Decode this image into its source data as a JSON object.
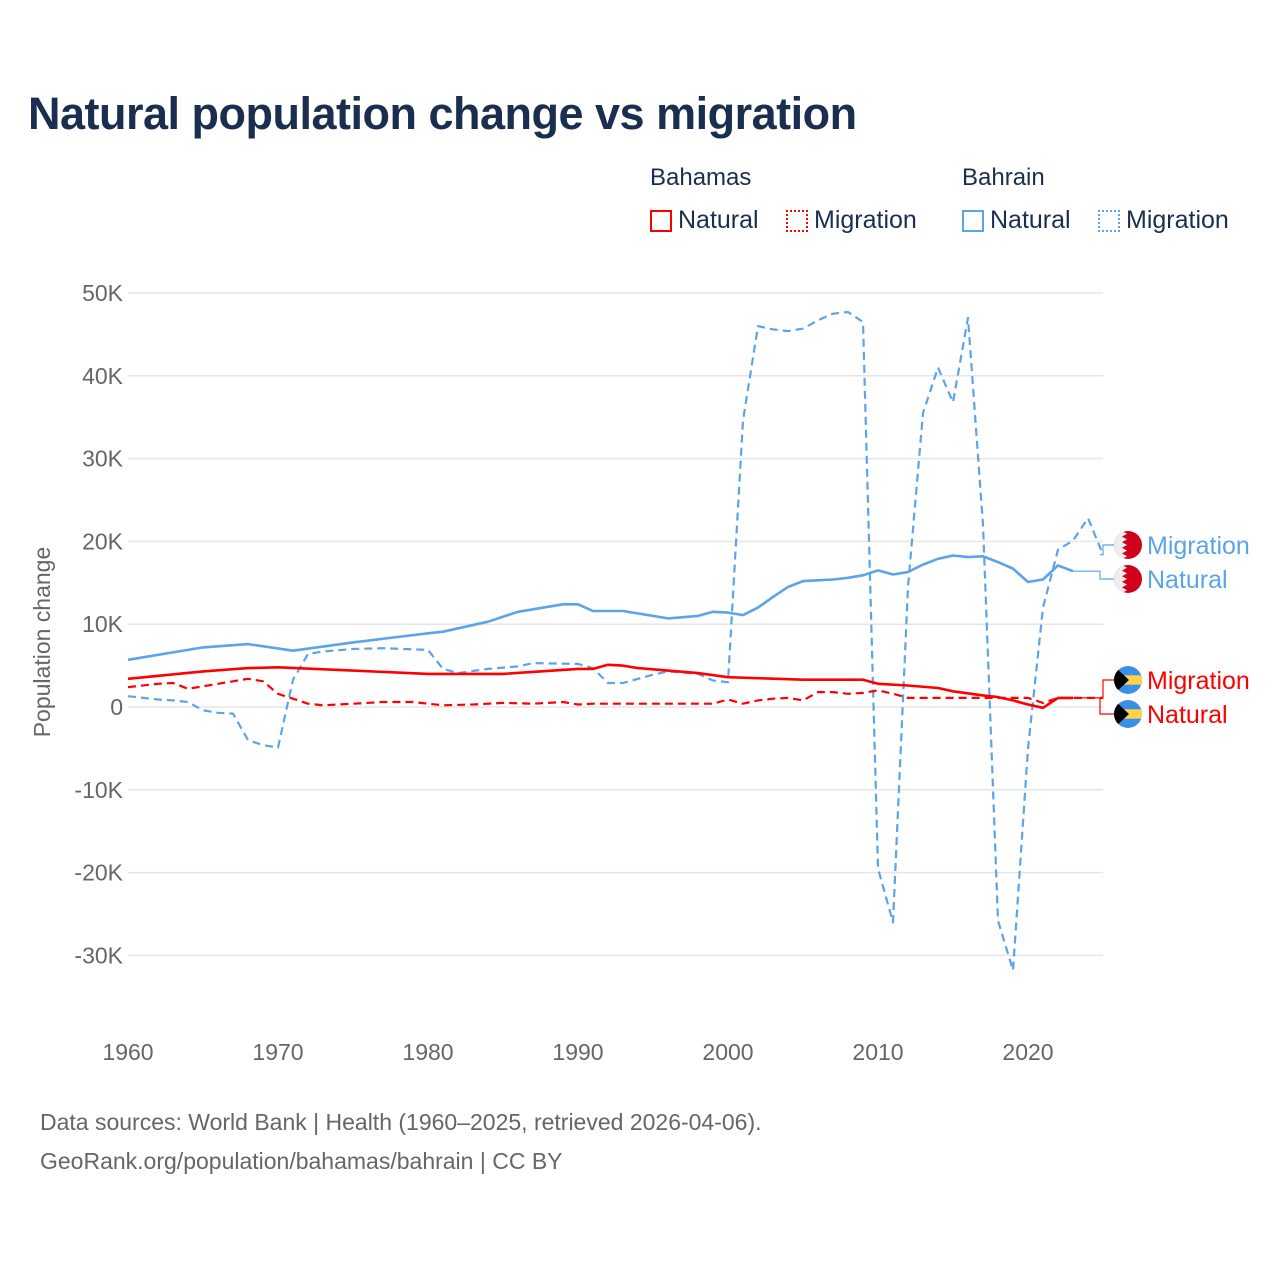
{
  "chart_data": {
    "type": "line",
    "title": "Natural population change vs migration",
    "xlabel": "",
    "ylabel": "Population change",
    "xlim": [
      1960,
      2025
    ],
    "ylim": [
      -35000,
      52000
    ],
    "x_ticks": [
      "1960",
      "1970",
      "1980",
      "1990",
      "2000",
      "2010",
      "2020"
    ],
    "y_ticks": [
      {
        "v": 50000,
        "label": "50K"
      },
      {
        "v": 40000,
        "label": "40K"
      },
      {
        "v": 30000,
        "label": "30K"
      },
      {
        "v": 20000,
        "label": "20K"
      },
      {
        "v": 10000,
        "label": "10K"
      },
      {
        "v": 0,
        "label": "0"
      },
      {
        "v": -10000,
        "label": "-10K"
      },
      {
        "v": -20000,
        "label": "-20K"
      },
      {
        "v": -30000,
        "label": "-30K"
      }
    ],
    "grid": true,
    "legend_placement": "top-right",
    "legend_groups": [
      {
        "name": "Bahamas",
        "items": [
          {
            "label": "Natural",
            "style": "solid"
          },
          {
            "label": "Migration",
            "style": "dotted"
          }
        ]
      },
      {
        "name": "Bahrain",
        "items": [
          {
            "label": "Natural",
            "style": "solid"
          },
          {
            "label": "Migration",
            "style": "dotted"
          }
        ]
      }
    ],
    "series": [
      {
        "name": "Bahrain Migration",
        "country": "Bahrain",
        "label": "Migration",
        "color": "#5ba4ea",
        "dash": true,
        "x": [
          1960,
          1962,
          1963,
          1964,
          1965,
          1966,
          1967,
          1968,
          1969,
          1970,
          1971,
          1972,
          1973,
          1975,
          1977,
          1980,
          1981,
          1982,
          1984,
          1986,
          1987,
          1990,
          1991,
          1992,
          1993,
          1995,
          1996,
          1998,
          1999,
          2000,
          2001,
          2002,
          2003,
          2004,
          2005,
          2006,
          2007,
          2008,
          2009,
          2010,
          2011,
          2012,
          2013,
          2014,
          2015,
          2016,
          2017,
          2018,
          2019,
          2020,
          2021,
          2022,
          2023,
          2024,
          2025
        ],
        "y": [
          1300,
          900,
          800,
          600,
          -400,
          -700,
          -800,
          -4000,
          -4600,
          -4900,
          3300,
          6400,
          6700,
          7000,
          7100,
          6900,
          4600,
          4100,
          4600,
          4900,
          5300,
          5200,
          4700,
          2900,
          2900,
          3900,
          4300,
          4000,
          3200,
          3000,
          34600,
          46000,
          45600,
          45400,
          45700,
          46700,
          47500,
          47700,
          46500,
          -19500,
          -26000,
          14500,
          35500,
          41000,
          36800,
          47000,
          22000,
          -25800,
          -31800,
          -5000,
          12000,
          19000,
          20100,
          22800,
          18400
        ]
      },
      {
        "name": "Bahrain Natural",
        "country": "Bahrain",
        "label": "Natural",
        "color": "#5ba4ea",
        "dash": false,
        "x": [
          1960,
          1965,
          1968,
          1971,
          1975,
          1980,
          1981,
          1984,
          1986,
          1989,
          1990,
          1991,
          1993,
          1996,
          1998,
          1999,
          2000,
          2001,
          2002,
          2003,
          2004,
          2005,
          2006,
          2007,
          2008,
          2009,
          2010,
          2011,
          2012,
          2013,
          2014,
          2015,
          2016,
          2017,
          2018,
          2019,
          2020,
          2021,
          2022,
          2023
        ],
        "y": [
          5700,
          7200,
          7600,
          6800,
          7800,
          8900,
          9100,
          10300,
          11500,
          12400,
          12400,
          11600,
          11600,
          10700,
          11000,
          11500,
          11400,
          11100,
          12000,
          13300,
          14500,
          15200,
          15300,
          15400,
          15600,
          15900,
          16500,
          16000,
          16300,
          17200,
          17900,
          18300,
          18100,
          18200,
          17500,
          16700,
          15100,
          15400,
          17100,
          16400
        ]
      },
      {
        "name": "Bahamas Migration",
        "country": "Bahamas",
        "label": "Migration",
        "color": "#ff0000",
        "dash": true,
        "x": [
          1960,
          1962,
          1963,
          1964,
          1966,
          1968,
          1969,
          1970,
          1971,
          1972,
          1973,
          1975,
          1977,
          1979,
          1980,
          1981,
          1983,
          1985,
          1987,
          1989,
          1990,
          1991,
          1999,
          2000,
          2001,
          2002,
          2003,
          2004,
          2005,
          2006,
          2007,
          2008,
          2009,
          2010,
          2011,
          2012,
          2020,
          2021,
          2022,
          2025
        ],
        "y": [
          2400,
          2800,
          2900,
          2200,
          2800,
          3400,
          3100,
          1600,
          1000,
          400,
          200,
          400,
          600,
          600,
          400,
          200,
          300,
          500,
          400,
          600,
          300,
          400,
          400,
          900,
          400,
          800,
          1000,
          1100,
          800,
          1800,
          1800,
          1600,
          1700,
          2000,
          1600,
          1100,
          1100,
          500,
          1100,
          1100
        ]
      },
      {
        "name": "Bahamas Natural",
        "country": "Bahamas",
        "label": "Natural",
        "color": "#ff0000",
        "dash": false,
        "x": [
          1960,
          1965,
          1968,
          1970,
          1975,
          1980,
          1985,
          1990,
          1991,
          1992,
          1993,
          1994,
          1996,
          1998,
          2000,
          2005,
          2008,
          2009,
          2010,
          2012,
          2014,
          2015,
          2017,
          2018,
          2019,
          2020,
          2021,
          2022,
          2023
        ],
        "y": [
          3400,
          4300,
          4700,
          4800,
          4400,
          4000,
          4000,
          4600,
          4600,
          5100,
          5000,
          4700,
          4400,
          4100,
          3600,
          3300,
          3300,
          3300,
          2800,
          2600,
          2300,
          1900,
          1400,
          1200,
          800,
          300,
          -100,
          1100,
          1100
        ]
      }
    ]
  },
  "legend": {
    "bahamas": "Bahamas",
    "bahrain": "Bahrain",
    "natural": "Natural",
    "migration": "Migration"
  },
  "colors": {
    "bahamas": "#ff0000",
    "bahrain": "#5ba4ea",
    "title": "#1a2e4f"
  },
  "footer": {
    "line1": "Data sources: World Bank | Health (1960–2025, retrieved 2026-04-06).",
    "line2": "GeoRank.org/population/bahamas/bahrain | CC BY"
  }
}
